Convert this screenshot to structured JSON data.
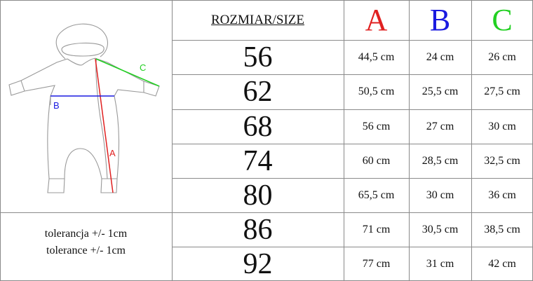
{
  "header": {
    "size_label": "ROZMIAR/SIZE",
    "col_a": "A",
    "col_b": "B",
    "col_c": "C"
  },
  "colors": {
    "a": "#e02020",
    "b": "#1a1ae0",
    "c": "#22d022"
  },
  "diagram": {
    "label_a": "A",
    "label_b": "B",
    "label_c": "C"
  },
  "tolerance": [
    "tolerancja +/- 1cm",
    "tolerance +/- 1cm"
  ],
  "rows": [
    {
      "size": "56",
      "a": "44,5 cm",
      "b": "24 cm",
      "c": "26 cm"
    },
    {
      "size": "62",
      "a": "50,5 cm",
      "b": "25,5 cm",
      "c": "27,5 cm"
    },
    {
      "size": "68",
      "a": "56 cm",
      "b": "27 cm",
      "c": "30 cm"
    },
    {
      "size": "74",
      "a": "60 cm",
      "b": "28,5 cm",
      "c": "32,5 cm"
    },
    {
      "size": "80",
      "a": "65,5 cm",
      "b": "30 cm",
      "c": "36 cm"
    },
    {
      "size": "86",
      "a": "71 cm",
      "b": "30,5 cm",
      "c": "38,5 cm"
    },
    {
      "size": "92",
      "a": "77 cm",
      "b": "31 cm",
      "c": "42 cm"
    }
  ]
}
